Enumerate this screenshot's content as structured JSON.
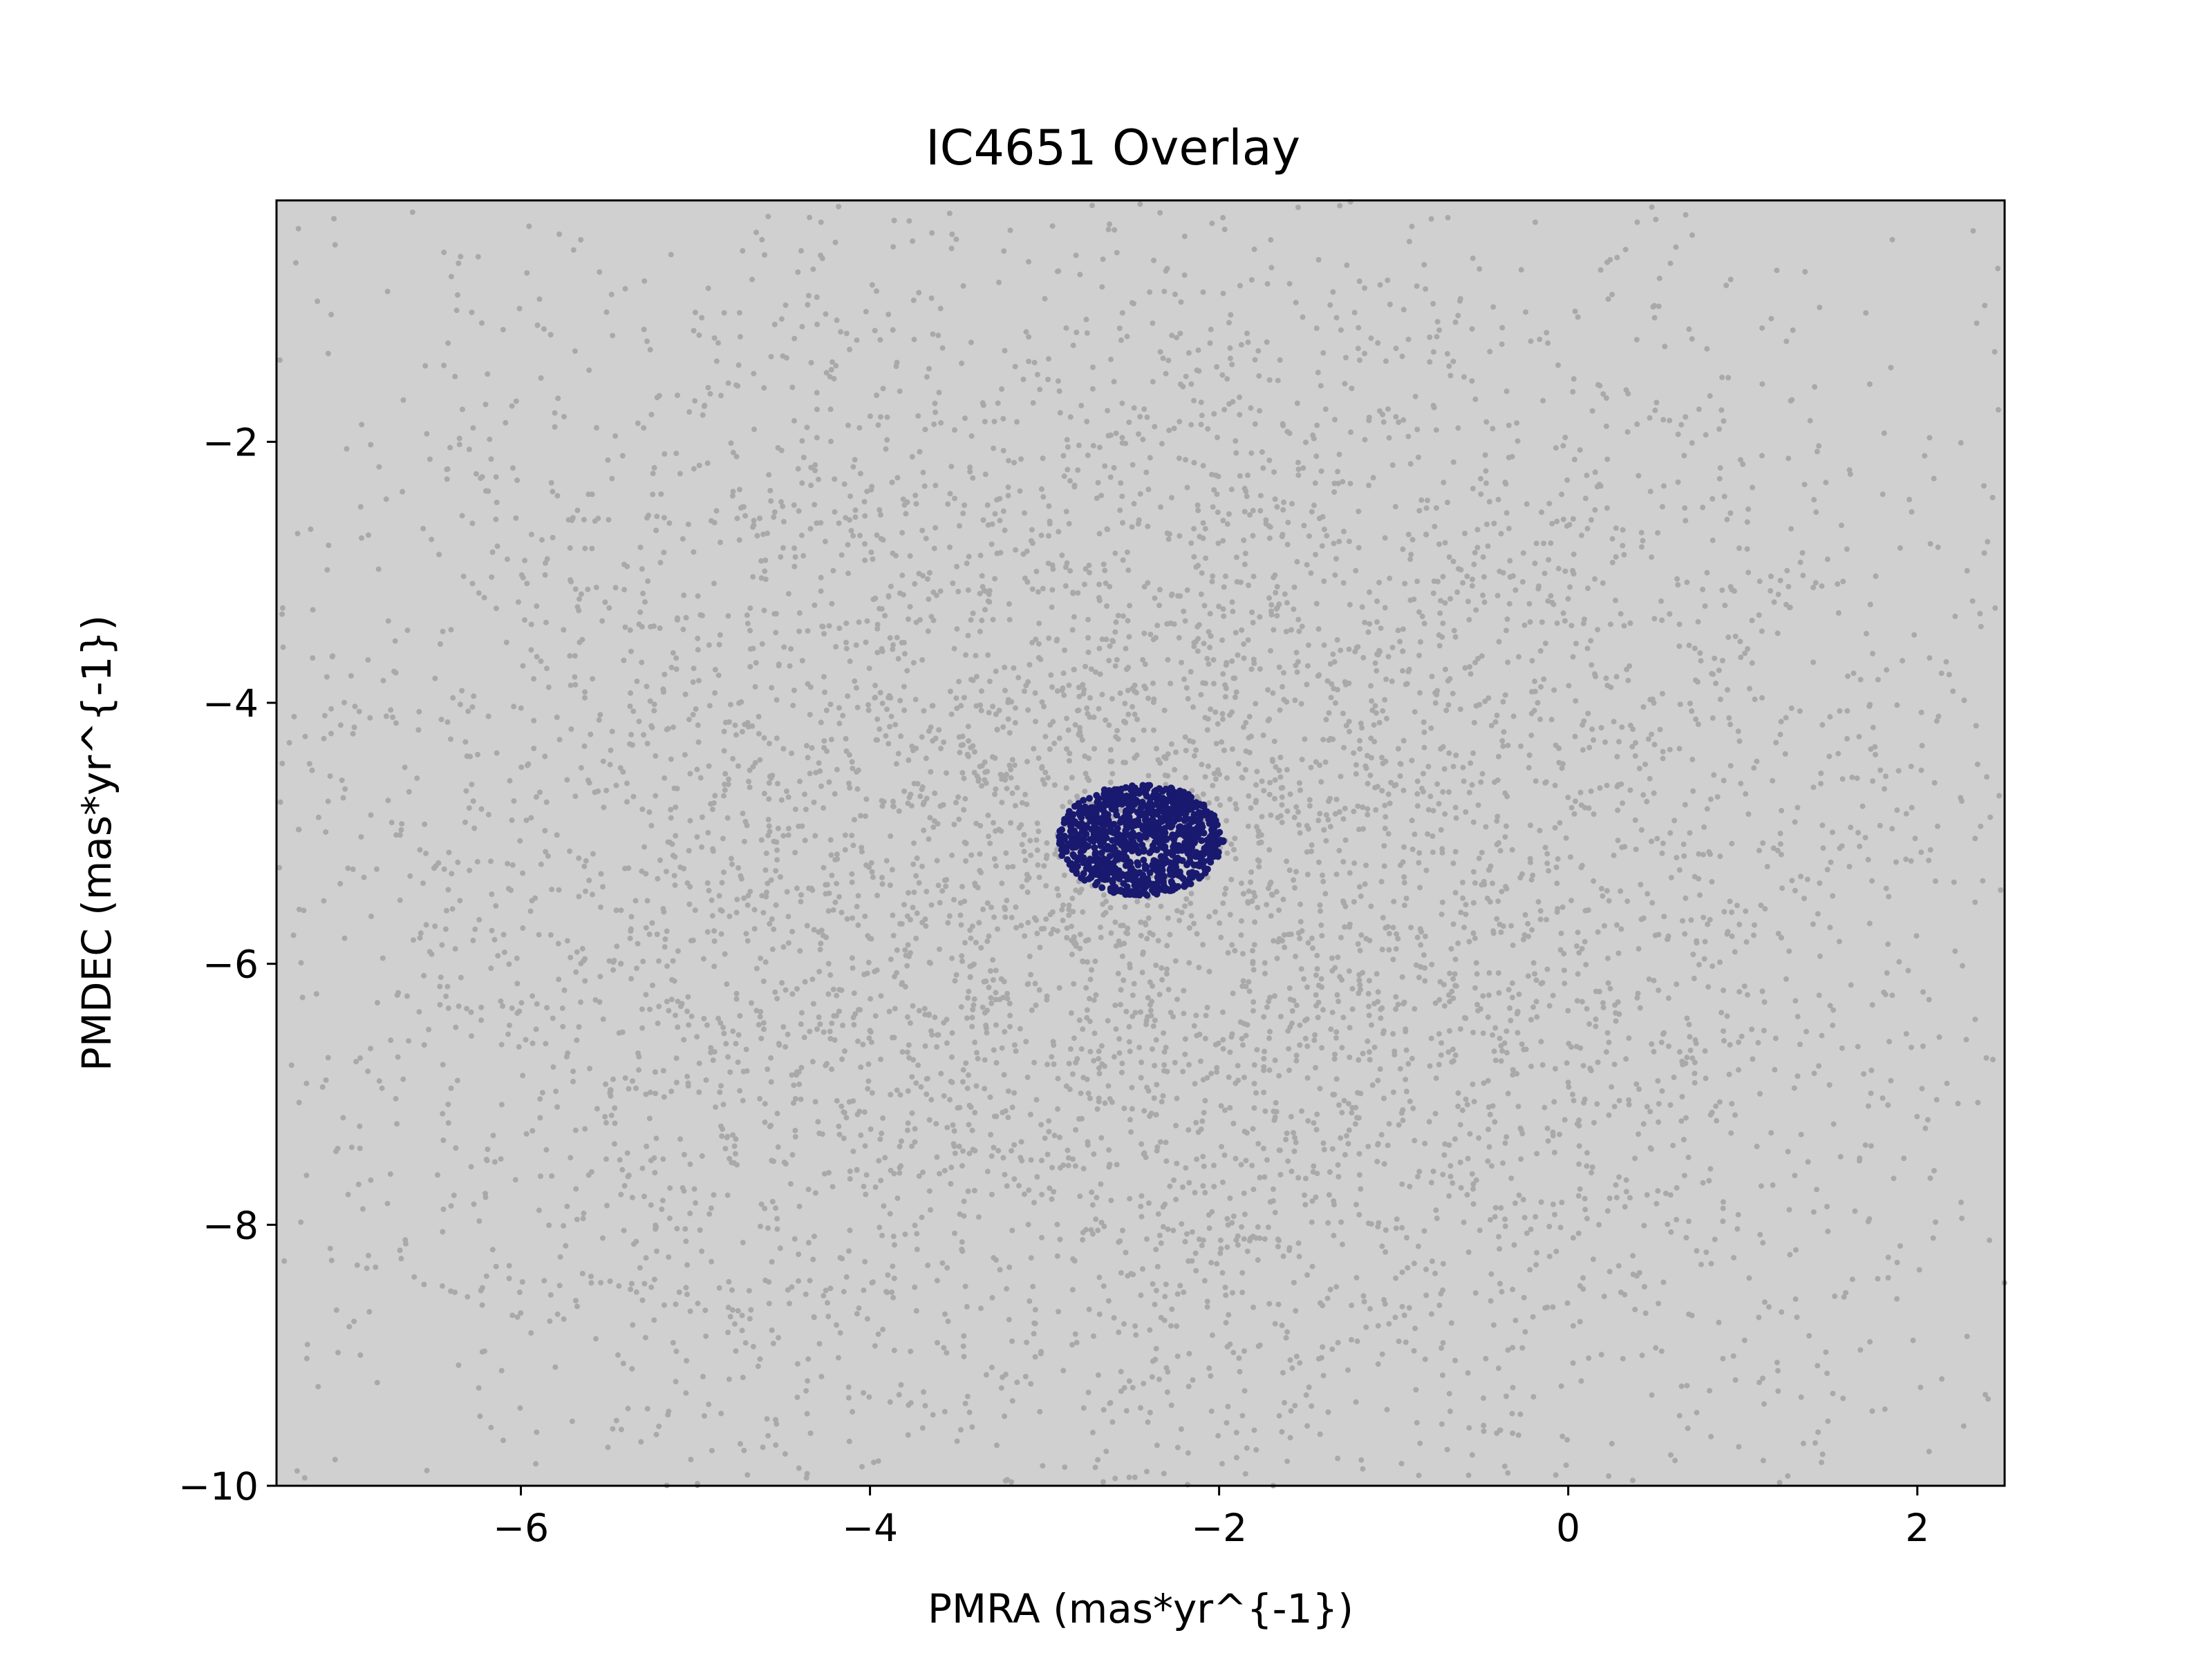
{
  "chart_data": {
    "type": "scatter",
    "title": "IC4651 Overlay",
    "xlabel": "PMRA (mas*yr^{-1})",
    "ylabel": "PMDEC (mas*yr^{-1})",
    "xlim": [
      -7.4,
      2.5
    ],
    "ylim": [
      -10,
      -0.15
    ],
    "x_ticks": [
      -6,
      -4,
      -2,
      0,
      2
    ],
    "x_tick_labels": [
      "−6",
      "−4",
      "−2",
      "0",
      "2"
    ],
    "y_ticks": [
      -2,
      -4,
      -6,
      -8,
      -10
    ],
    "y_tick_labels": [
      "−2",
      "−4",
      "−6",
      "−8",
      "−10"
    ],
    "grid": false,
    "legend": "none",
    "series": [
      {
        "color": "#a9a9a9",
        "distribution": "broad field population, dense core around PMRA -2.5, PMDEC -5.3, fills the whole plotted area",
        "center": [
          -2.5,
          -5.3
        ]
      },
      {
        "color": "#191970",
        "distribution": "compact cluster blob",
        "center": [
          -2.45,
          -5.05
        ],
        "extent": {
          "pmra": [
            -2.95,
            -1.95
          ],
          "pmdec": [
            -5.5,
            -4.6
          ]
        }
      }
    ]
  }
}
